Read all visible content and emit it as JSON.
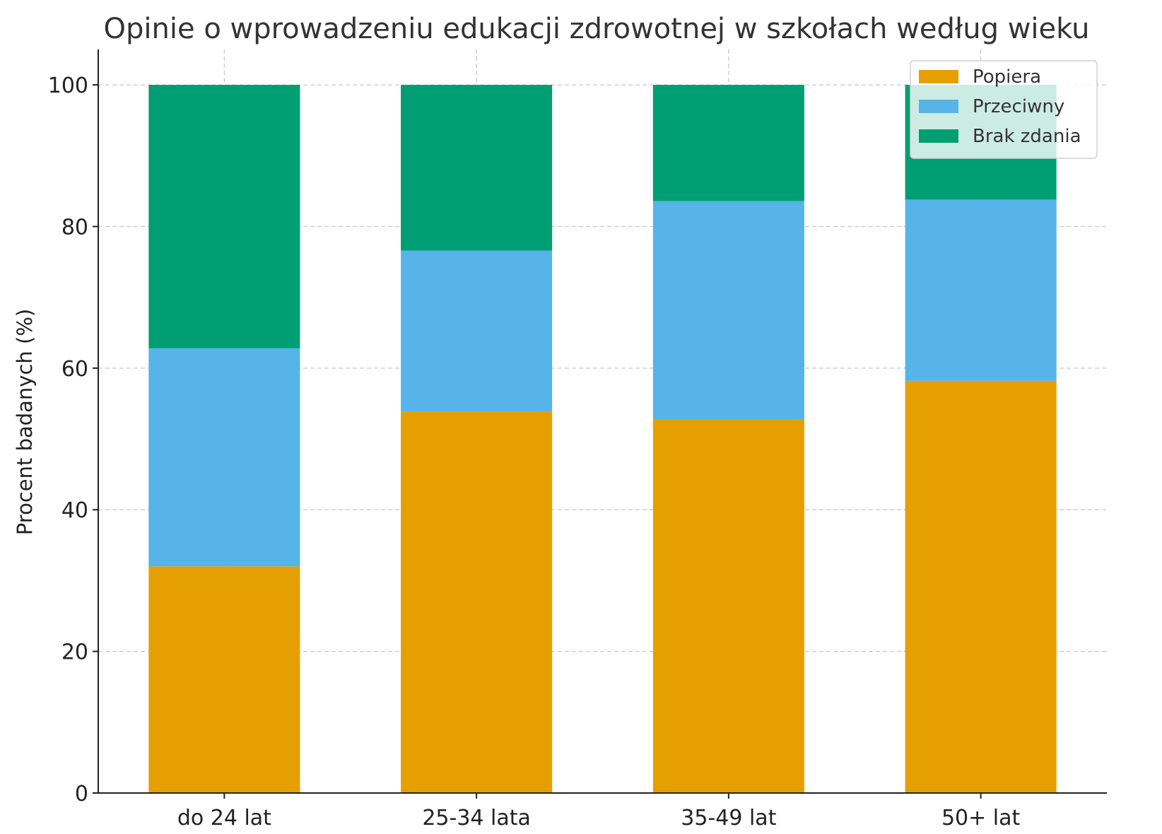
{
  "chart_data": {
    "type": "bar",
    "stacked": true,
    "title": "Opinie o wprowadzeniu edukacji zdrowotnej w szkołach według wieku",
    "xlabel": "",
    "ylabel": "Procent badanych (%)",
    "ylim": [
      0,
      105
    ],
    "yticks": [
      0,
      20,
      40,
      60,
      80,
      100
    ],
    "grid": true,
    "legend_position": "top-right",
    "categories": [
      "do 24 lat",
      "25-34 lata",
      "35-49 lat",
      "50+ lat"
    ],
    "series": [
      {
        "name": "Popiera",
        "color": "#E69F00",
        "values": [
          32.0,
          53.9,
          52.8,
          58.2
        ]
      },
      {
        "name": "Przeciwny",
        "color": "#56B4E9",
        "values": [
          30.8,
          22.7,
          30.8,
          25.6
        ]
      },
      {
        "name": "Brak zdania",
        "color": "#009E73",
        "values": [
          37.2,
          23.4,
          16.4,
          16.2
        ]
      }
    ]
  }
}
